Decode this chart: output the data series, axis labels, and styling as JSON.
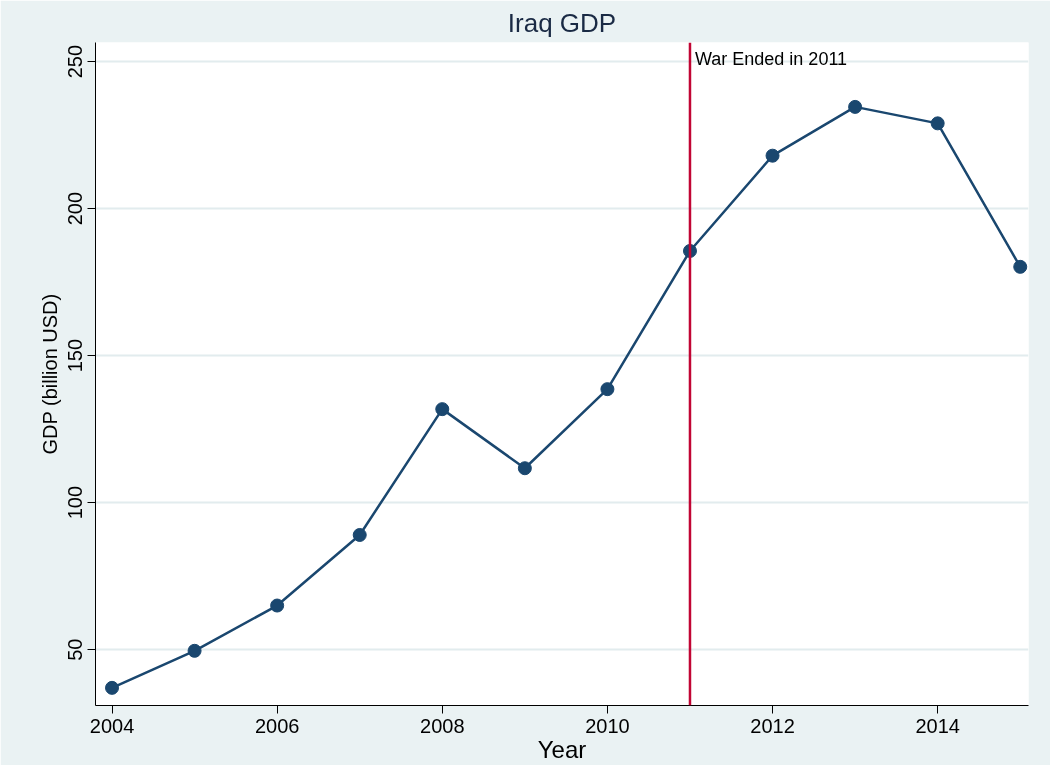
{
  "chart_data": {
    "type": "line",
    "title": "Iraq GDP",
    "xlabel": "Year",
    "ylabel": "GDP (billion USD)",
    "x": [
      2004,
      2005,
      2006,
      2007,
      2008,
      2009,
      2010,
      2011,
      2012,
      2013,
      2014,
      2015
    ],
    "series": [
      {
        "color": "#1a476f",
        "values": [
          37,
          49.6,
          65,
          89,
          131.8,
          111.7,
          138.6,
          185.6,
          218,
          234.6,
          229,
          180.2
        ]
      }
    ],
    "xlim": [
      2003.8,
      2015.1
    ],
    "xticks": [
      2004,
      2006,
      2008,
      2010,
      2012,
      2014
    ],
    "ylim": [
      31,
      256.5
    ],
    "yticks": [
      50,
      100,
      150,
      200,
      250
    ],
    "grid": "y",
    "marker": "circle",
    "line_style": "solid",
    "ref_lines": [
      {
        "axis": "x",
        "value": 2011,
        "label": "War Ended in 2011",
        "color": "#c10534"
      }
    ]
  }
}
